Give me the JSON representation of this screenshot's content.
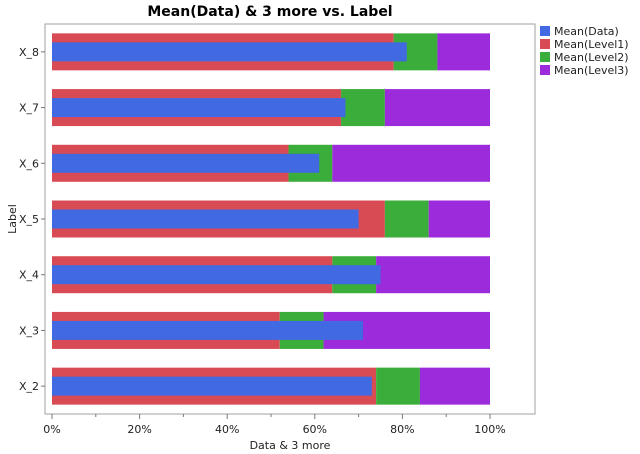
{
  "chart_data": {
    "type": "bar",
    "orientation": "horizontal",
    "title": "Mean(Data) & 3 more vs. Label",
    "xlabel": "Data & 3 more",
    "ylabel": "Label",
    "xlim": [
      0,
      100
    ],
    "x_ticks": [
      "0%",
      "20%",
      "40%",
      "60%",
      "80%",
      "100%"
    ],
    "x_tick_values": [
      0,
      20,
      40,
      60,
      80,
      100
    ],
    "categories": [
      "X_8",
      "X_7",
      "X_6",
      "X_5",
      "X_4",
      "X_3",
      "X_2"
    ],
    "stacked_series": [
      {
        "name": "Mean(Level1)",
        "color": "#d94b54",
        "values": [
          78,
          66,
          54,
          76,
          64,
          52,
          74
        ]
      },
      {
        "name": "Mean(Level2)",
        "color": "#3aad3a",
        "values": [
          10,
          10,
          10,
          10,
          10,
          10,
          10
        ]
      },
      {
        "name": "Mean(Level3)",
        "color": "#9b2bdb",
        "values": [
          12,
          24,
          36,
          14,
          26,
          38,
          16
        ]
      }
    ],
    "overlay_series": {
      "name": "Mean(Data)",
      "color": "#4169e1",
      "values": [
        81,
        67,
        61,
        70,
        75,
        71,
        73
      ]
    },
    "legend": {
      "placement": "top-right",
      "entries": [
        {
          "name": "Mean(Data)",
          "color": "#4169e1"
        },
        {
          "name": "Mean(Level1)",
          "color": "#d94b54"
        },
        {
          "name": "Mean(Level2)",
          "color": "#3aad3a"
        },
        {
          "name": "Mean(Level3)",
          "color": "#9b2bdb"
        }
      ]
    },
    "grid": false
  }
}
